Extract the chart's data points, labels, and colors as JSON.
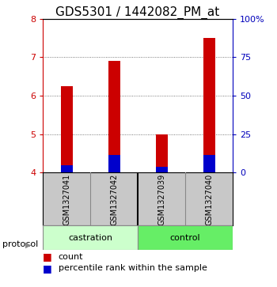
{
  "title": "GDS5301 / 1442082_PM_at",
  "samples": [
    "GSM1327041",
    "GSM1327042",
    "GSM1327039",
    "GSM1327040"
  ],
  "bar_base": 4.0,
  "red_tops": [
    6.25,
    6.9,
    5.0,
    7.5
  ],
  "blue_tops": [
    4.2,
    4.45,
    4.15,
    4.45
  ],
  "red_color": "#CC0000",
  "blue_color": "#0000CC",
  "ylim": [
    4.0,
    8.0
  ],
  "yticks_left": [
    4,
    5,
    6,
    7,
    8
  ],
  "yticks_right": [
    0,
    25,
    50,
    75,
    100
  ],
  "right_axis_color": "#0000BB",
  "grid_color": "#000000",
  "bg_color": "#FFFFFF",
  "bar_width": 0.25,
  "castration_color": "#CCFFCC",
  "control_color": "#66EE66",
  "sample_bg": "#C8C8C8",
  "protocol_label": "protocol",
  "legend_count": "count",
  "legend_percentile": "percentile rank within the sample",
  "title_fontsize": 11,
  "tick_fontsize": 8,
  "sample_fontsize": 7,
  "proto_fontsize": 8,
  "legend_fontsize": 8
}
